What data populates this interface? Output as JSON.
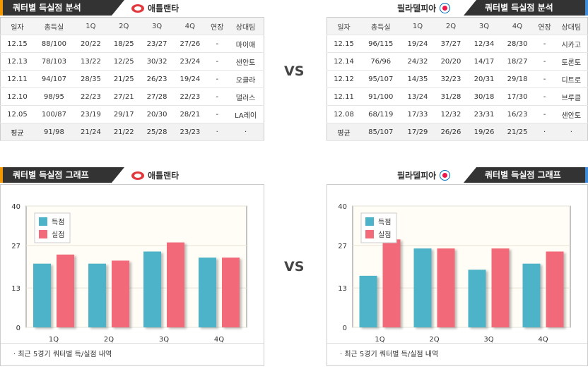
{
  "atl": {
    "tab": "쿼터별 득실점 분석",
    "team": "애틀랜타",
    "headers": [
      "일자",
      "총득실",
      "1Q",
      "2Q",
      "3Q",
      "4Q",
      "연장",
      "상대팀"
    ],
    "rows": [
      [
        "12.15",
        "88/100",
        "20/22",
        "18/25",
        "23/27",
        "27/26",
        "-",
        "마이애"
      ],
      [
        "12.13",
        "78/103",
        "13/22",
        "12/25",
        "30/32",
        "23/24",
        "-",
        "샌안토"
      ],
      [
        "12.11",
        "94/107",
        "28/35",
        "21/25",
        "26/23",
        "19/24",
        "-",
        "오클라"
      ],
      [
        "12.10",
        "98/95",
        "22/23",
        "27/21",
        "27/28",
        "22/23",
        "-",
        "댈러스"
      ],
      [
        "12.05",
        "100/87",
        "23/19",
        "29/17",
        "20/30",
        "28/21",
        "-",
        "LA레이"
      ],
      [
        "평균",
        "91/98",
        "21/24",
        "21/22",
        "25/28",
        "23/23",
        "·",
        "·"
      ]
    ]
  },
  "phi": {
    "tab": "쿼터별 득실점 분석",
    "team": "필라델피아",
    "headers": [
      "일자",
      "총득실",
      "1Q",
      "2Q",
      "3Q",
      "4Q",
      "연장",
      "상대팀"
    ],
    "rows": [
      [
        "12.15",
        "96/115",
        "19/24",
        "37/27",
        "12/34",
        "28/30",
        "-",
        "시카고"
      ],
      [
        "12.14",
        "76/96",
        "24/32",
        "20/20",
        "14/17",
        "18/27",
        "-",
        "토론토"
      ],
      [
        "12.12",
        "95/107",
        "14/35",
        "32/23",
        "20/31",
        "29/18",
        "-",
        "디트로"
      ],
      [
        "12.11",
        "91/100",
        "13/24",
        "31/28",
        "30/18",
        "17/30",
        "-",
        "브루클"
      ],
      [
        "12.08",
        "68/119",
        "17/33",
        "12/32",
        "23/31",
        "16/23",
        "-",
        "샌안토"
      ],
      [
        "평균",
        "85/107",
        "17/29",
        "26/26",
        "19/26",
        "21/25",
        "·",
        "·"
      ]
    ]
  },
  "vs_label": "VS",
  "chart_tab": "쿼터별 득실점 그래프",
  "note": "· 최근 5경기 쿼터별 득/실점 내역",
  "colors": {
    "scored": "#4db3c8",
    "allowed": "#f26b7a"
  },
  "chart_data": [
    {
      "type": "bar",
      "team": "애틀랜타",
      "categories": [
        "1Q",
        "2Q",
        "3Q",
        "4Q"
      ],
      "series": [
        {
          "name": "득점",
          "values": [
            21,
            21,
            25,
            23
          ]
        },
        {
          "name": "실점",
          "values": [
            24,
            22,
            28,
            23
          ]
        }
      ],
      "ylim": [
        0,
        40
      ],
      "yticks": [
        0,
        13,
        27,
        40
      ],
      "legend": "top-left"
    },
    {
      "type": "bar",
      "team": "필라델피아",
      "categories": [
        "1Q",
        "2Q",
        "3Q",
        "4Q"
      ],
      "series": [
        {
          "name": "득점",
          "values": [
            17,
            26,
            19,
            21
          ]
        },
        {
          "name": "실점",
          "values": [
            29,
            26,
            26,
            25
          ]
        }
      ],
      "ylim": [
        0,
        40
      ],
      "yticks": [
        0,
        13,
        27,
        40
      ],
      "legend": "top-left"
    }
  ]
}
